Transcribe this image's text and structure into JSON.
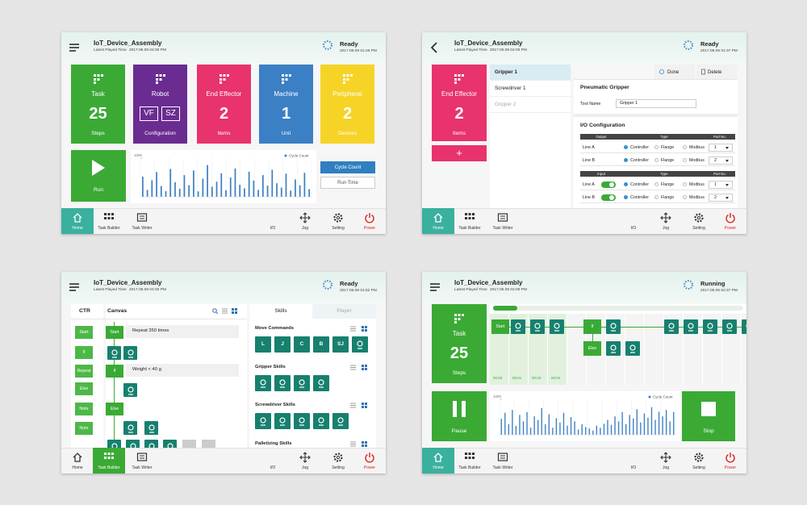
{
  "nav": [
    "Home",
    "Task Builder",
    "Task Writer",
    "I/O",
    "Jog",
    "Setting",
    "Power"
  ],
  "screens": [
    {
      "title": "IoT_Device_Assembly",
      "played_label": "Latest Played Time",
      "played_time": "2017.06.08 04:00 PM",
      "status": "Ready",
      "status_time": "2017.06.09 01:26 PM",
      "active_nav": 0,
      "active_color": "#3ab09e",
      "tiles": [
        {
          "label": "Task",
          "value": 25,
          "unit": "Steps",
          "color": "#3aaa35"
        },
        {
          "label": "Robot",
          "badges": [
            "VF",
            "SZ"
          ],
          "unit": "Configuration",
          "color": "#6a2c91"
        },
        {
          "label": "End Effector",
          "value": 2,
          "unit": "Items",
          "color": "#e8336d"
        },
        {
          "label": "Machine",
          "value": 1,
          "unit": "Unit",
          "color": "#3b7fc4"
        },
        {
          "label": "Peripheral",
          "value": 2,
          "unit": "Devices",
          "color": "#f5d327"
        }
      ],
      "run": "Run",
      "chart": {
        "legend": "Cycle Count",
        "color": "#3b7fc4",
        "ylim": [
          0,
          1000
        ],
        "yticks": [
          1000
        ],
        "values": [
          520,
          180,
          430,
          640,
          280,
          150,
          720,
          380,
          210,
          560,
          300,
          680,
          140,
          470,
          820,
          260,
          390,
          610,
          170,
          500,
          730,
          310,
          220,
          650,
          420,
          180,
          560,
          290,
          700,
          350,
          240,
          600,
          160,
          450,
          300,
          620,
          200
        ]
      },
      "buttons": [
        "Cycle Count",
        "Run Time"
      ]
    },
    {
      "title": "IoT_Device_Assembly",
      "played_label": "Latest Played Time",
      "played_time": "2017.06.08 04:00 PM",
      "status": "Ready",
      "status_time": "2017.06.09 01:37 PM",
      "active_nav": 0,
      "active_color": "#3ab09e",
      "tile": {
        "label": "End Effector",
        "value": 2,
        "unit": "Items",
        "color": "#e8336d"
      },
      "add": "+",
      "tools": [
        "Gripper 1",
        "Screwdriver 1",
        "Gripper 2"
      ],
      "selected_tool": 0,
      "actions": [
        "Done",
        "Delete"
      ],
      "section": "Pneumatic Gripper",
      "tool_name_label": "Tool Name",
      "tool_name": "Gripper 1",
      "io_title": "I/O Configuration",
      "io_tables": [
        {
          "head": [
            "Output",
            "Type",
            "Port No."
          ],
          "rows": [
            {
              "line": "Line A",
              "options": [
                "Controller",
                "Flange",
                "Modbus"
              ],
              "port": 1
            },
            {
              "line": "Line B",
              "options": [
                "Controller",
                "Flange",
                "Modbus"
              ],
              "port": 2
            }
          ]
        },
        {
          "head": [
            "Input",
            "Type",
            "Port No."
          ],
          "rows": [
            {
              "line": "Line A",
              "options": [
                "Controller",
                "Flange",
                "Modbus"
              ],
              "port": 1
            },
            {
              "line": "Line B",
              "options": [
                "Controller",
                "Flange",
                "Modbus"
              ],
              "port": 2
            }
          ]
        }
      ]
    },
    {
      "title": "IoT_Device_Assembly",
      "played_label": "Latest Played Time",
      "played_time": "2017.06.08 04:00 PM",
      "status": "Ready",
      "status_time": "2017.06.09 01:52 PM",
      "active_nav": 1,
      "active_color": "#3aaa35",
      "left_tabs": [
        "CTR",
        "Canvas"
      ],
      "right_tabs": [
        "Skills",
        "Player"
      ],
      "ctr_items": [
        "Start",
        "If",
        "Repeat",
        "Else",
        "Note",
        "Note"
      ],
      "canvas_nodes": [
        "Start",
        "If",
        "Else"
      ],
      "canvas_texts": [
        "Repeat  350 times",
        "Weight < 40 g"
      ],
      "skill_groups": [
        {
          "title": "Move Commands",
          "items": [
            "L",
            "J",
            "C",
            "B",
            "SJ"
          ]
        },
        {
          "title": "Gripper Skills"
        },
        {
          "title": "Screwdriver Skills"
        },
        {
          "title": "Palletizing Skills"
        }
      ]
    },
    {
      "title": "IoT_Device_Assembly",
      "played_label": "Latest Played Time",
      "played_time": "2017.06.08 04:00 PM",
      "status": "Running",
      "status_time": "2017.06.09 02:37 PM",
      "active_nav": 0,
      "active_color": "#3ab09e",
      "tile": {
        "label": "Task",
        "value": 25,
        "unit": "Steps",
        "color": "#3aaa35"
      },
      "timeline_nodes": [
        "Start",
        "If",
        "Else"
      ],
      "timeline_times": [
        "00:00",
        "00:01",
        "00:03",
        "00:04"
      ],
      "chart": {
        "legend": "Cycle Count",
        "color": "#3b7fc4",
        "ylim": [
          0,
          1000
        ],
        "yticks": [
          1000
        ],
        "values": [
          450,
          620,
          300,
          700,
          250,
          560,
          380,
          640,
          200,
          520,
          420,
          750,
          300,
          580,
          200,
          470,
          350,
          620,
          260,
          500,
          380,
          150,
          300,
          220,
          180,
          120,
          260,
          200,
          310,
          420,
          280,
          520,
          380,
          640,
          300,
          560,
          460,
          720,
          350,
          600,
          480,
          780,
          420,
          650,
          520,
          700,
          380,
          640
        ]
      },
      "pause": "Pause",
      "stop": "Stop"
    }
  ]
}
